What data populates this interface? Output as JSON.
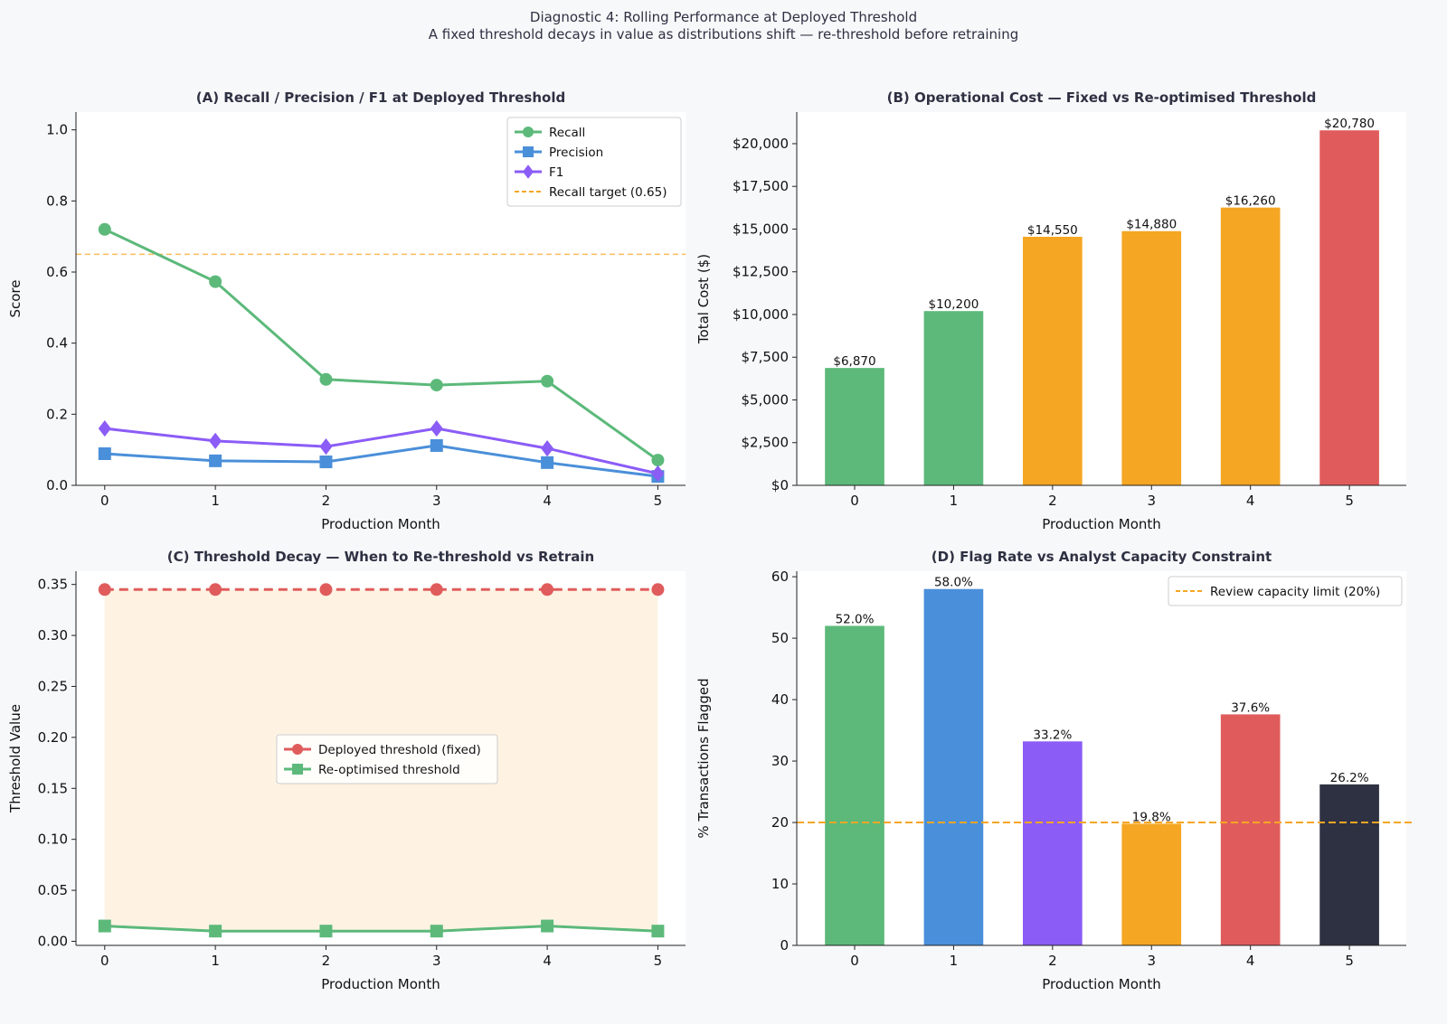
{
  "suptitle": "Diagnostic 4: Rolling Performance at Deployed Threshold",
  "subtitle": "A fixed threshold decays in value as distributions shift — re-threshold before retraining",
  "colors": {
    "green": "#5cb97a",
    "blue": "#4a8fd9",
    "purple": "#8b5cf6",
    "orange": "#f5a623",
    "red": "#e05c5c",
    "dark": "#2e3142"
  },
  "chart_data": [
    {
      "type": "line",
      "title": "(A) Recall / Precision / F1 at Deployed Threshold",
      "xlabel": "Production Month",
      "ylabel": "Score",
      "x": [
        0,
        1,
        2,
        3,
        4,
        5
      ],
      "xticks": [
        "0",
        "1",
        "2",
        "3",
        "4",
        "5"
      ],
      "yticks": [
        "0.0",
        "0.2",
        "0.4",
        "0.6",
        "0.8",
        "1.0"
      ],
      "ylim": [
        0,
        1.05
      ],
      "xlim": [
        -0.26,
        5.25
      ],
      "series": [
        {
          "name": "Recall",
          "color": "#5cb97a",
          "marker": "circle",
          "values": [
            0.72,
            0.573,
            0.298,
            0.282,
            0.293,
            0.071
          ]
        },
        {
          "name": "Precision",
          "color": "#4a8fd9",
          "marker": "square",
          "values": [
            0.089,
            0.069,
            0.066,
            0.112,
            0.064,
            0.025
          ]
        },
        {
          "name": "F1",
          "color": "#8b5cf6",
          "marker": "diamond",
          "values": [
            0.16,
            0.125,
            0.109,
            0.16,
            0.104,
            0.033
          ]
        }
      ],
      "hline": {
        "name": "Recall target (0.65)",
        "value": 0.65,
        "color": "#f5a623"
      },
      "legend": "top-right",
      "grid": false
    },
    {
      "type": "bar",
      "title": "(B) Operational Cost — Fixed vs Re-optimised Threshold",
      "xlabel": "Production Month",
      "ylabel": "Total Cost ($)",
      "categories": [
        "0",
        "1",
        "2",
        "3",
        "4",
        "5"
      ],
      "values": [
        6870,
        10200,
        14550,
        14880,
        16260,
        20780
      ],
      "labels": [
        "$6,870",
        "$10,200",
        "$14,550",
        "$14,880",
        "$16,260",
        "$20,780"
      ],
      "bar_colors": [
        "#5cb97a",
        "#5cb97a",
        "#f5a623",
        "#f5a623",
        "#f5a623",
        "#e05c5c"
      ],
      "yticks": [
        "$0",
        "$2,500",
        "$5,000",
        "$7,500",
        "$10,000",
        "$12,500",
        "$15,000",
        "$17,500",
        "$20,000"
      ],
      "ylim": [
        0,
        21850
      ],
      "grid": false
    },
    {
      "type": "line",
      "title": "(C) Threshold Decay — When to Re-threshold vs Retrain",
      "xlabel": "Production Month",
      "ylabel": "Threshold Value",
      "x": [
        0,
        1,
        2,
        3,
        4,
        5
      ],
      "xticks": [
        "0",
        "1",
        "2",
        "3",
        "4",
        "5"
      ],
      "yticks": [
        "0.00",
        "0.05",
        "0.10",
        "0.15",
        "0.20",
        "0.25",
        "0.30",
        "0.35"
      ],
      "ylim": [
        -0.004,
        0.363
      ],
      "xlim": [
        -0.26,
        5.25
      ],
      "series": [
        {
          "name": "Deployed threshold (fixed)",
          "color": "#e05c5c",
          "marker": "circle",
          "dashed": true,
          "values": [
            0.345,
            0.345,
            0.345,
            0.345,
            0.345,
            0.345
          ]
        },
        {
          "name": "Re-optimised threshold",
          "color": "#5cb97a",
          "marker": "square",
          "values": [
            0.015,
            0.01,
            0.01,
            0.01,
            0.015,
            0.01
          ]
        }
      ],
      "fill_between": true,
      "legend": "center",
      "grid": false
    },
    {
      "type": "bar",
      "title": "(D) Flag Rate vs Analyst Capacity Constraint",
      "xlabel": "Production Month",
      "ylabel": "% Transactions Flagged",
      "categories": [
        "0",
        "1",
        "2",
        "3",
        "4",
        "5"
      ],
      "values": [
        52.0,
        58.0,
        33.2,
        19.8,
        37.6,
        26.2
      ],
      "labels": [
        "52.0%",
        "58.0%",
        "33.2%",
        "19.8%",
        "37.6%",
        "26.2%"
      ],
      "bar_colors": [
        "#5cb97a",
        "#4a8fd9",
        "#8b5cf6",
        "#f5a623",
        "#e05c5c",
        "#2e3142"
      ],
      "yticks": [
        "0",
        "10",
        "20",
        "30",
        "40",
        "50",
        "60"
      ],
      "ylim": [
        0,
        60.9
      ],
      "hline": {
        "name": "Review capacity limit (20%)",
        "value": 20,
        "color": "#f5a623"
      },
      "legend": "top-right",
      "grid": false
    }
  ]
}
